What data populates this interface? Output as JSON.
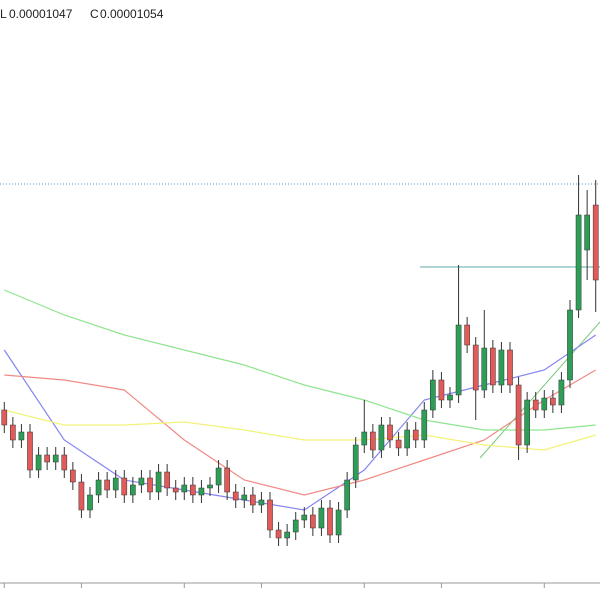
{
  "header": {
    "low_label": "L",
    "low": "0.00001047",
    "close_label": "C",
    "close": "0.00001054"
  },
  "chart_data": {
    "type": "candlestick",
    "ylim": [
      0,
      600
    ],
    "xlim": [
      0,
      70
    ],
    "xticks": [
      0,
      9,
      21,
      30,
      42,
      51,
      63
    ],
    "up_color": "#2e9e57",
    "down_color": "#e25b5b",
    "open": [
      190,
      175,
      160,
      168,
      130,
      145,
      138,
      145,
      130,
      118,
      90,
      105,
      120,
      110,
      122,
      105,
      115,
      122,
      108,
      128,
      112,
      108,
      115,
      105,
      112,
      115,
      132,
      108,
      100,
      105,
      95,
      100,
      70,
      62,
      68,
      80,
      85,
      72,
      92,
      65,
      90,
      120,
      155,
      168,
      150,
      175,
      160,
      152,
      170,
      160,
      190,
      220,
      200,
      205,
      275,
      255,
      210,
      252,
      215,
      250,
      215,
      155,
      200,
      190,
      202,
      195,
      220,
      290,
      350,
      395
    ],
    "close": [
      175,
      160,
      168,
      130,
      145,
      138,
      145,
      130,
      118,
      90,
      105,
      120,
      110,
      122,
      105,
      115,
      122,
      108,
      128,
      112,
      108,
      115,
      105,
      112,
      115,
      132,
      108,
      100,
      105,
      95,
      100,
      70,
      62,
      68,
      80,
      85,
      72,
      92,
      65,
      90,
      120,
      155,
      168,
      150,
      175,
      160,
      152,
      170,
      160,
      190,
      220,
      200,
      205,
      275,
      255,
      210,
      252,
      215,
      250,
      215,
      155,
      200,
      190,
      202,
      195,
      220,
      290,
      385,
      385,
      320
    ],
    "high": [
      198,
      183,
      176,
      176,
      153,
      153,
      153,
      153,
      138,
      126,
      113,
      128,
      128,
      130,
      130,
      123,
      130,
      130,
      136,
      136,
      120,
      123,
      123,
      120,
      123,
      140,
      140,
      116,
      113,
      113,
      108,
      108,
      78,
      76,
      88,
      93,
      93,
      100,
      100,
      98,
      128,
      163,
      200,
      176,
      183,
      183,
      168,
      178,
      178,
      198,
      230,
      228,
      213,
      335,
      283,
      263,
      290,
      260,
      258,
      258,
      223,
      208,
      208,
      210,
      210,
      228,
      300,
      425,
      410,
      420
    ],
    "low": [
      167,
      152,
      152,
      122,
      122,
      130,
      130,
      122,
      110,
      82,
      82,
      97,
      102,
      102,
      97,
      97,
      107,
      100,
      100,
      104,
      100,
      100,
      97,
      97,
      104,
      107,
      100,
      92,
      92,
      87,
      87,
      62,
      54,
      54,
      60,
      72,
      64,
      64,
      57,
      57,
      82,
      112,
      147,
      142,
      142,
      152,
      144,
      144,
      152,
      152,
      182,
      192,
      192,
      197,
      247,
      180,
      202,
      207,
      207,
      207,
      140,
      147,
      182,
      182,
      187,
      187,
      212,
      282,
      320,
      288
    ],
    "moving_averages": [
      {
        "color": "#8585f0",
        "x": [
          0,
          7,
          14,
          21,
          28,
          35,
          42,
          49,
          56,
          63,
          69
        ],
        "values": [
          250,
          160,
          120,
          110,
          100,
          90,
          130,
          200,
          215,
          230,
          265
        ]
      },
      {
        "color": "#f08a84",
        "x": [
          0,
          7,
          14,
          21,
          28,
          35,
          42,
          49,
          56,
          63,
          69
        ],
        "values": [
          225,
          220,
          210,
          160,
          120,
          105,
          120,
          140,
          160,
          200,
          230
        ]
      },
      {
        "color": "#8fe58f",
        "x": [
          0,
          7,
          14,
          21,
          28,
          35,
          42,
          49,
          56,
          63,
          69
        ],
        "values": [
          310,
          285,
          265,
          250,
          235,
          215,
          200,
          180,
          170,
          170,
          175
        ]
      },
      {
        "color": "#f2f27a",
        "x": [
          0,
          7,
          14,
          21,
          28,
          35,
          42,
          49,
          56,
          63,
          69
        ],
        "values": [
          190,
          175,
          175,
          178,
          170,
          160,
          160,
          165,
          155,
          150,
          165
        ]
      }
    ],
    "price_lines": [
      {
        "value": 416,
        "from": 0,
        "color": "#5b8fd6"
      },
      {
        "value": 333,
        "from": 49,
        "color": "#5fa8a8"
      }
    ]
  }
}
